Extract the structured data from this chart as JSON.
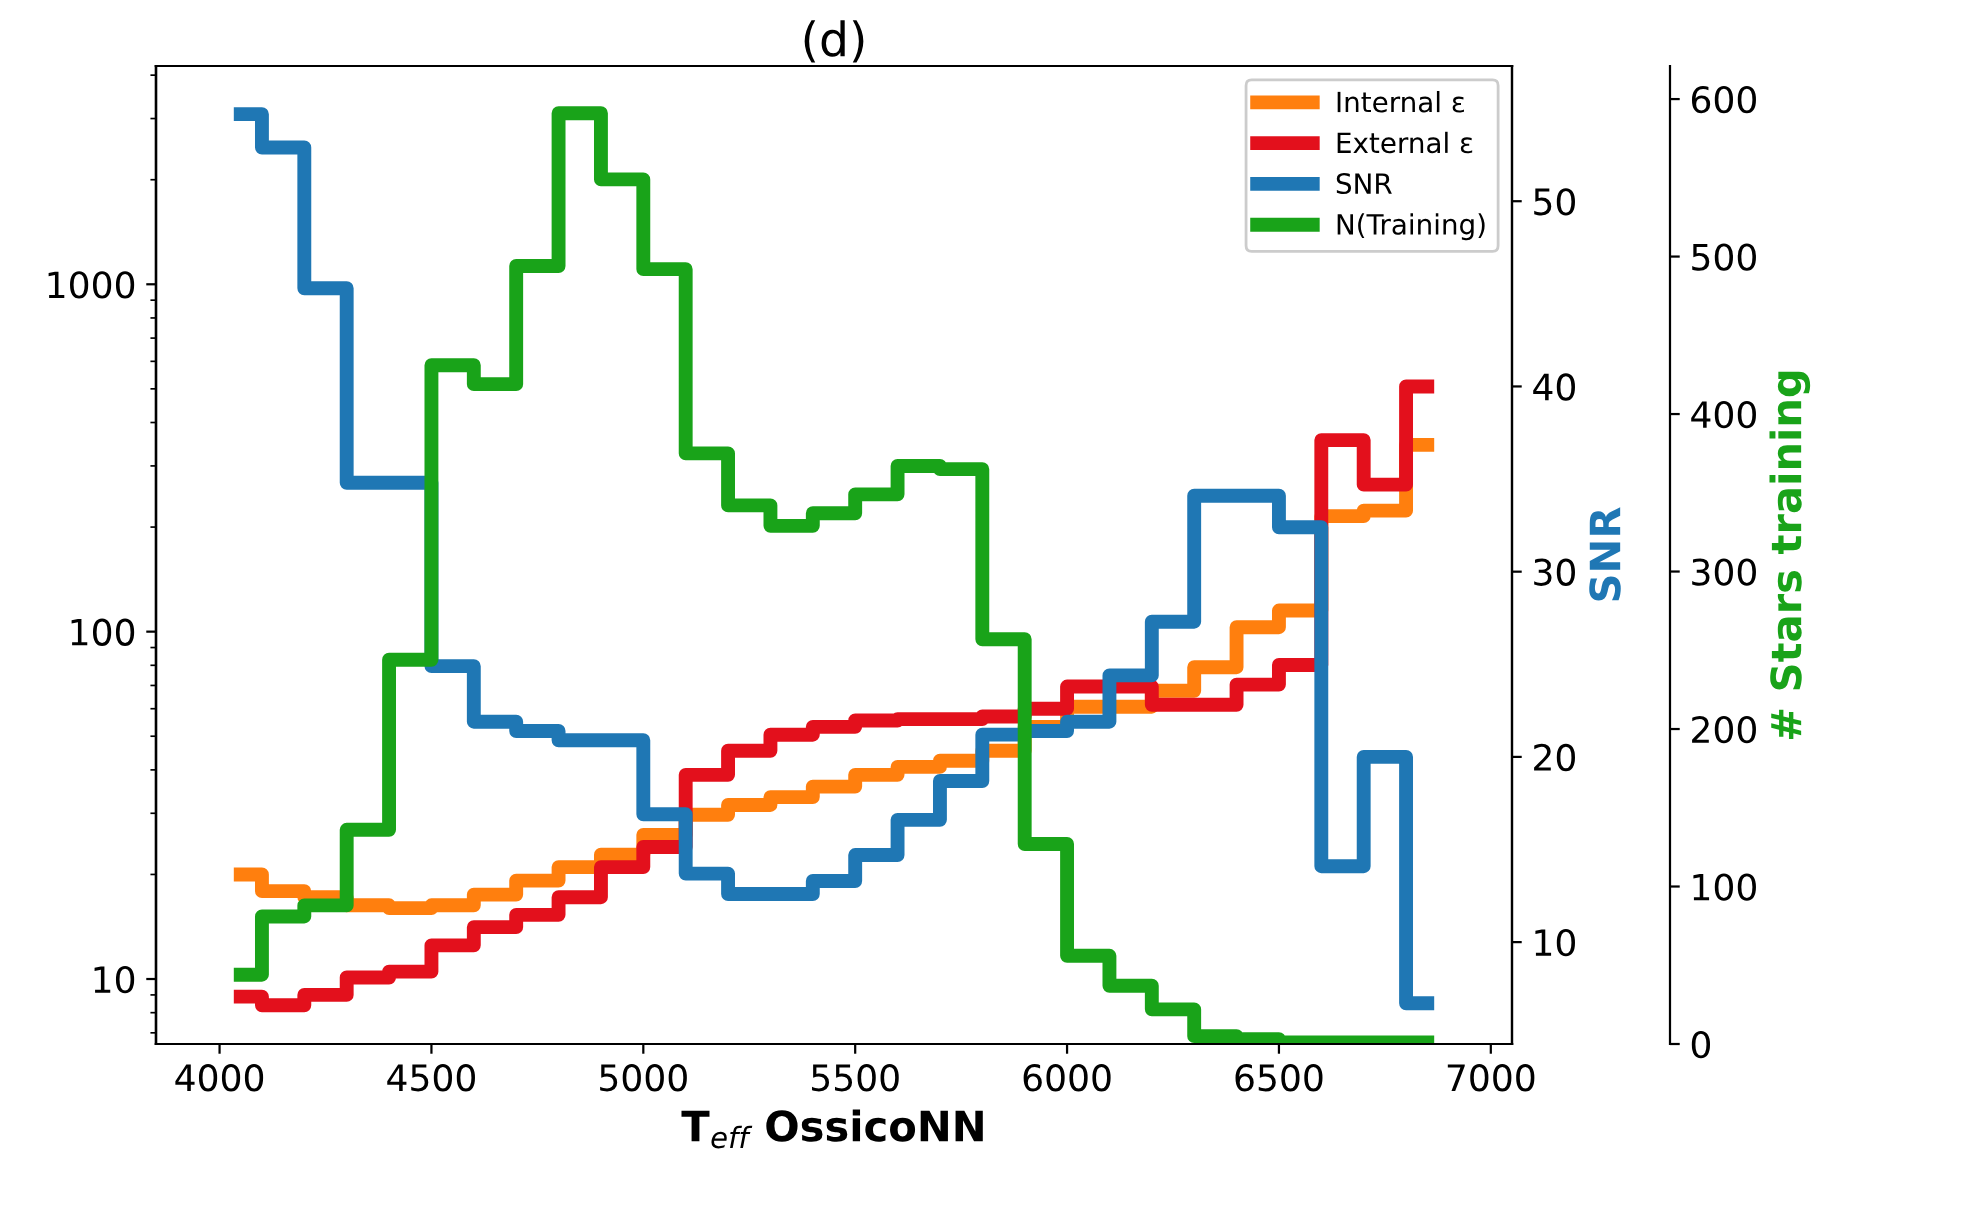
{
  "chart_data": {
    "type": "step",
    "title": "(d)",
    "xlabel": "T$_{eff}$ OssicoNN",
    "y2label": "SNR",
    "y3label": "# Stars training",
    "x": [
      4050,
      4150,
      4250,
      4350,
      4450,
      4550,
      4650,
      4750,
      4850,
      4950,
      5050,
      5150,
      5250,
      5350,
      5450,
      5550,
      5650,
      5750,
      5850,
      5950,
      6050,
      6150,
      6250,
      6350,
      6450,
      6550,
      6650,
      6750,
      6850
    ],
    "series": [
      {
        "name": "Internal ε",
        "color": "#ff7f0e",
        "axis": "y",
        "values": [
          20,
          17.9,
          17.2,
          16.3,
          16.0,
          16.3,
          17.5,
          19.2,
          21,
          22.8,
          26,
          29.7,
          31.7,
          33.4,
          35.8,
          38.7,
          40.8,
          42.5,
          45.4,
          53.2,
          60.8,
          60.8,
          67.6,
          79,
          103,
          115,
          215,
          223,
          345
        ]
      },
      {
        "name": "External ε",
        "color": "#e3101c",
        "axis": "y",
        "values": [
          8.9,
          8.4,
          9.0,
          10.1,
          10.5,
          12.5,
          14.1,
          15.3,
          17.2,
          21,
          24,
          38.7,
          45.4,
          50.5,
          53.2,
          55.5,
          56,
          56,
          57,
          60,
          69.5,
          69.5,
          61.6,
          61.6,
          70.4,
          80.2,
          356,
          265,
          508
        ]
      },
      {
        "name": "SNR",
        "color": "#1f77b4",
        "axis": "y2",
        "values": [
          54.7,
          52.9,
          45.3,
          34.8,
          34.8,
          24.9,
          21.9,
          21.4,
          20.9,
          20.9,
          16.9,
          13.7,
          12.6,
          12.6,
          13.3,
          14.7,
          16.6,
          18.7,
          21.2,
          21.4,
          21.9,
          24.4,
          27.3,
          34.1,
          34.1,
          32.4,
          14.1,
          20,
          6.7
        ]
      },
      {
        "name": "N(Training)",
        "color": "#19a319",
        "axis": "y3",
        "values": [
          44,
          81,
          88,
          136,
          244,
          431,
          419,
          494,
          591,
          549,
          492,
          375,
          342,
          329,
          337,
          349,
          367,
          365,
          257,
          127,
          56,
          37,
          22,
          5,
          3,
          1,
          1,
          1,
          1
        ]
      }
    ],
    "xlim": [
      3850,
      7050
    ],
    "xticks": [
      4000,
      4500,
      5000,
      5500,
      6000,
      6500,
      7000
    ],
    "log": true,
    "ylim": [
      6.5,
      4250
    ],
    "yticks": [
      10,
      100,
      1000
    ],
    "y2lim": [
      4.5,
      57.3
    ],
    "y2ticks": [
      10,
      20,
      30,
      40,
      50
    ],
    "y3lim": [
      0,
      621
    ],
    "y3ticks": [
      0,
      100,
      200,
      300,
      400,
      500,
      600
    ],
    "legend": "top right",
    "grid": false
  }
}
